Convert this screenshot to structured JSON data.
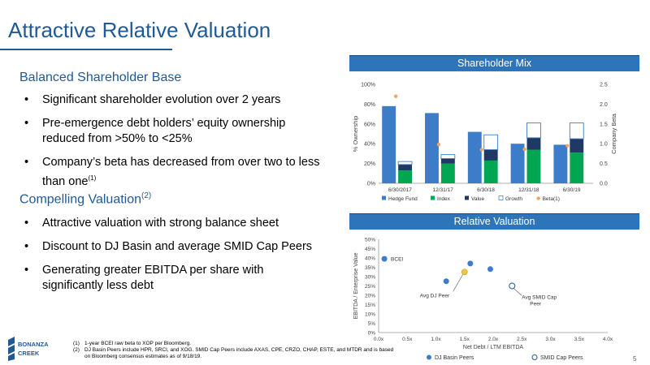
{
  "slide": {
    "title": "Attractive Relative Valuation",
    "page_number": "5"
  },
  "left": {
    "section1": {
      "heading": "Balanced Shareholder Base"
    },
    "bullets1": [
      {
        "text": "Significant shareholder evolution over 2 years",
        "sup": ""
      },
      {
        "text": "Pre-emergence debt holders’ equity ownership reduced from >50% to <25%",
        "sup": ""
      },
      {
        "text": "Company’s beta has decreased from over two to less than one",
        "sup": "(1)"
      }
    ],
    "section2": {
      "heading": "Compelling Valuation",
      "sup": "(2)"
    },
    "bullets2": [
      {
        "text": "Attractive valuation with strong balance sheet"
      },
      {
        "text": "Discount to DJ Basin and average SMID Cap Peers"
      },
      {
        "text": "Generating greater EBITDA per share with significantly less debt"
      }
    ]
  },
  "panels": {
    "shareholder_mix": "Shareholder Mix",
    "relative_valuation": "Relative Valuation"
  },
  "footnotes": [
    {
      "num": "(1)",
      "text": "1-year BCEI raw beta to XOP per Bloomberg."
    },
    {
      "num": "(2)",
      "text": "DJ Basin Peers include HPR, SRCI, and XOG. SMID Cap Peers include AXAS, CPE, CRZO, CHAP, ESTE, and MTDR and is based on Bloomberg consensus estimates as of 9/18/19."
    }
  ],
  "logo": {
    "line1": "BONANZA",
    "line2": "CREEK"
  },
  "colors": {
    "accent": "#1f5a96",
    "hedge_fund": "#3d7cc9",
    "index": "#00a651",
    "value": "#1f3864",
    "growth_outline": "#3d7cc9",
    "beta": "#f4a460",
    "dj_basin": "#3d7cc9",
    "smid": "#1f5a96",
    "avg_dj": "#f2c744"
  },
  "chart_data": [
    {
      "type": "bar",
      "title": "",
      "categories": [
        "6/30/2017",
        "12/31/17",
        "6/30/18",
        "12/31/18",
        "6/30/19"
      ],
      "ylabel": "% Ownership",
      "ylim": [
        0,
        100
      ],
      "yticks": [
        "0%",
        "20%",
        "40%",
        "60%",
        "80%",
        "100%"
      ],
      "y2label": "Company Beta",
      "y2lim": [
        0,
        2.5
      ],
      "y2ticks": [
        "0.0",
        "0.5",
        "1.0",
        "1.5",
        "2.0",
        "2.5"
      ],
      "series": [
        {
          "name": "Hedge Fund",
          "kind": "bar",
          "values": [
            78,
            71,
            52,
            40,
            39
          ]
        },
        {
          "name": "Index",
          "kind": "stack",
          "values": [
            13,
            20,
            23,
            34,
            31
          ]
        },
        {
          "name": "Value",
          "kind": "stack",
          "values": [
            6,
            5,
            11,
            12,
            14
          ]
        },
        {
          "name": "Growth",
          "kind": "stack",
          "values": [
            3,
            4,
            15,
            15,
            16
          ]
        },
        {
          "name": "Beta(1)",
          "kind": "marker",
          "axis": "y2",
          "values": [
            2.2,
            0.98,
            0.85,
            0.86,
            0.95
          ]
        }
      ],
      "legend": "bottom"
    },
    {
      "type": "scatter",
      "title": "",
      "xlabel": "Net Debt / LTM EBITDA",
      "ylabel": "EBITDA / Enterprise Value",
      "xlim": [
        0,
        4
      ],
      "ylim": [
        0,
        50
      ],
      "xticks": [
        "0.0x",
        "0.5x",
        "1.0x",
        "1.5x",
        "2.0x",
        "2.5x",
        "3.0x",
        "3.5x",
        "4.0x"
      ],
      "yticks": [
        "0%",
        "5%",
        "10%",
        "15%",
        "20%",
        "25%",
        "30%",
        "35%",
        "40%",
        "45%",
        "50%"
      ],
      "points": [
        {
          "label": "BCEI",
          "x": 0.1,
          "y": 39.5,
          "group": "BCEI"
        },
        {
          "label": "",
          "x": 1.18,
          "y": 27.5,
          "group": "DJ Basin Peers"
        },
        {
          "label": "",
          "x": 1.6,
          "y": 37,
          "group": "DJ Basin Peers"
        },
        {
          "label": "",
          "x": 1.95,
          "y": 34,
          "group": "DJ Basin Peers"
        },
        {
          "label": "Avg DJ Peer",
          "x": 1.5,
          "y": 32.5,
          "group": "Avg DJ Peer"
        },
        {
          "label": "Avg SMID Cap Peer",
          "x": 2.33,
          "y": 25,
          "group": "SMID Cap Peers"
        }
      ],
      "legend_items": [
        "DJ Basin Peers",
        "SMID Cap Peers"
      ],
      "legend": "bottom"
    }
  ]
}
